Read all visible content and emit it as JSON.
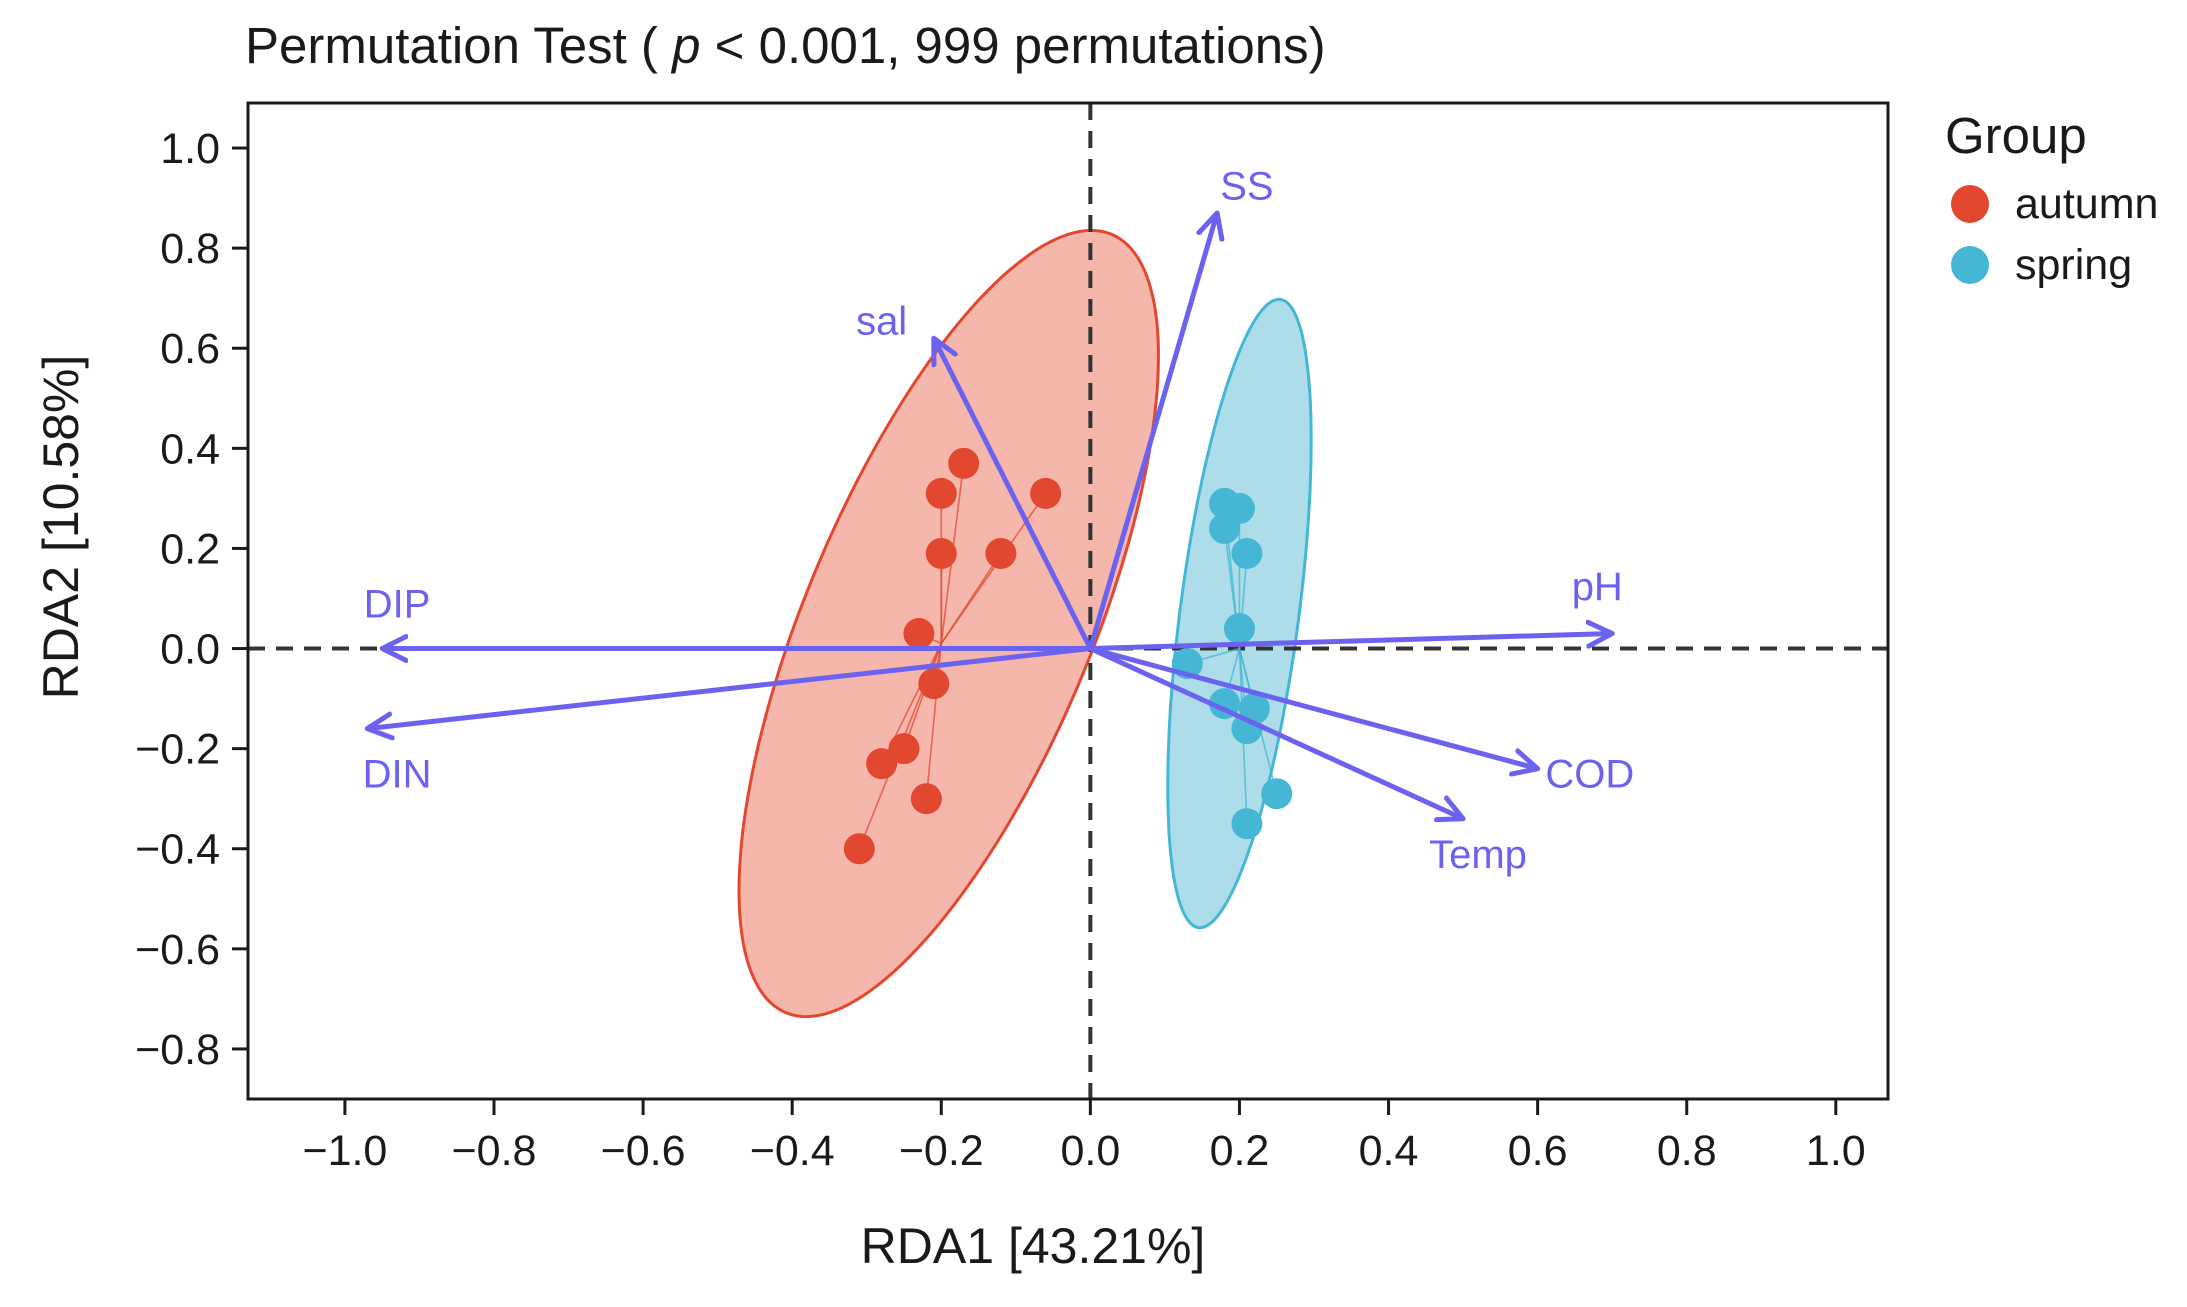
{
  "chart_data": {
    "type": "scatter",
    "title": {
      "prefix": "Permutation Test ( ",
      "italic": "p",
      "suffix": " < 0.001, 999 permutations)"
    },
    "xlabel": "RDA1 [43.21%]",
    "ylabel": "RDA2 [10.58%]",
    "xlim": [
      -1.13,
      1.07
    ],
    "ylim": [
      -0.9,
      1.09
    ],
    "x_ticks": [
      -1.0,
      -0.8,
      -0.6,
      -0.4,
      -0.2,
      0.0,
      0.2,
      0.4,
      0.6,
      0.8,
      1.0
    ],
    "y_ticks": [
      -0.8,
      -0.6,
      -0.4,
      -0.2,
      0.0,
      0.2,
      0.4,
      0.6,
      0.8,
      1.0
    ],
    "x_tick_labels": [
      "−1.0",
      "−0.8",
      "−0.6",
      "−0.4",
      "−0.2",
      "0.0",
      "0.2",
      "0.4",
      "0.6",
      "0.8",
      "1.0"
    ],
    "y_tick_labels": [
      "−0.8",
      "−0.6",
      "−0.4",
      "−0.2",
      "0.0",
      "0.2",
      "0.4",
      "0.6",
      "0.8",
      "1.0"
    ],
    "reference_lines": {
      "x": 0,
      "y": 0,
      "style": "dashed"
    },
    "legend": {
      "title": "Group",
      "position": "right"
    },
    "series": [
      {
        "name": "autumn",
        "color": "#e2472f",
        "fill": "#f4b3a8",
        "centroid": [
          -0.2,
          0.01
        ],
        "ellipse": {
          "center": [
            -0.19,
            0.05
          ],
          "semi_major": 0.81,
          "semi_minor": 0.2,
          "angle_deg": 75.4
        },
        "points": [
          [
            -0.17,
            0.37
          ],
          [
            -0.2,
            0.31
          ],
          [
            -0.06,
            0.31
          ],
          [
            -0.2,
            0.19
          ],
          [
            -0.12,
            0.19
          ],
          [
            -0.23,
            0.03
          ],
          [
            -0.21,
            -0.07
          ],
          [
            -0.25,
            -0.2
          ],
          [
            -0.28,
            -0.23
          ],
          [
            -0.22,
            -0.3
          ],
          [
            -0.31,
            -0.4
          ]
        ]
      },
      {
        "name": "spring",
        "color": "#45b6d3",
        "fill": "#a8dbe8",
        "centroid": [
          0.2,
          0.0
        ],
        "ellipse": {
          "center": [
            0.2,
            0.07
          ],
          "semi_major": 0.63,
          "semi_minor": 0.08,
          "angle_deg": 85.1
        },
        "points": [
          [
            0.18,
            0.29
          ],
          [
            0.2,
            0.28
          ],
          [
            0.18,
            0.24
          ],
          [
            0.21,
            0.19
          ],
          [
            0.2,
            0.04
          ],
          [
            0.13,
            -0.03
          ],
          [
            0.18,
            -0.11
          ],
          [
            0.22,
            -0.12
          ],
          [
            0.21,
            -0.16
          ],
          [
            0.25,
            -0.29
          ],
          [
            0.21,
            -0.35
          ]
        ]
      }
    ],
    "vectors": {
      "color": "#6b63f0",
      "items": [
        {
          "name": "SS",
          "x": 0.17,
          "y": 0.87,
          "label_x": 0.21,
          "label_y": 0.925
        },
        {
          "name": "sal",
          "x": -0.21,
          "y": 0.62,
          "label_x": -0.28,
          "label_y": 0.655
        },
        {
          "name": "pH",
          "x": 0.7,
          "y": 0.03,
          "label_x": 0.68,
          "label_y": 0.125
        },
        {
          "name": "DIP",
          "x": -0.95,
          "y": -0.0,
          "label_x": -0.93,
          "label_y": 0.09
        },
        {
          "name": "DIN",
          "x": -0.97,
          "y": -0.16,
          "label_x": -0.93,
          "label_y": -0.25
        },
        {
          "name": "COD",
          "x": 0.6,
          "y": -0.24,
          "label_x": 0.67,
          "label_y": -0.25
        },
        {
          "name": "Temp",
          "x": 0.5,
          "y": -0.34,
          "label_x": 0.52,
          "label_y": -0.41
        }
      ]
    }
  }
}
